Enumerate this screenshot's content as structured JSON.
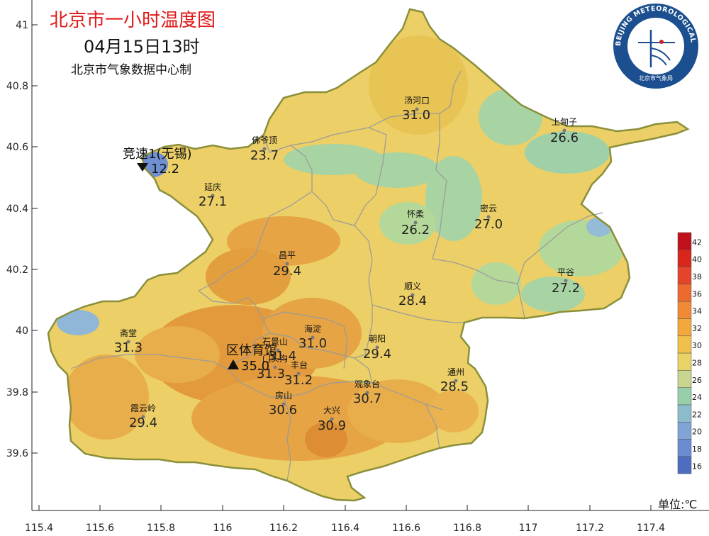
{
  "header": {
    "title": "北京市一小时温度图",
    "datetime": "04月15日13时",
    "credit": "北京市气象数据中心制"
  },
  "logo": {
    "ring_text": "BEIJING METEOROLOGICAL SERVICE",
    "bottom_text": "北京市气象局"
  },
  "axes": {
    "y_ticks": [
      "41",
      "40.8",
      "40.6",
      "40.4",
      "40.2",
      "40",
      "39.8",
      "39.6"
    ],
    "x_ticks": [
      "115.4",
      "115.6",
      "115.8",
      "116",
      "116.2",
      "116.4",
      "116.6",
      "116.8",
      "117",
      "117.2",
      "117.4"
    ]
  },
  "legend": {
    "unit_label": "单位:℃",
    "levels": [
      "42",
      "40",
      "38",
      "36",
      "34",
      "32",
      "30",
      "28",
      "26",
      "24",
      "22",
      "20",
      "18",
      "16"
    ],
    "colors": [
      "#c0101c",
      "#d8261c",
      "#e4442a",
      "#ec6a2e",
      "#f08a34",
      "#f2a83a",
      "#f0c04a",
      "#e8d466",
      "#c8d690",
      "#96cfaa",
      "#8cbccc",
      "#80a4d6",
      "#6a8cd2",
      "#4e6cc0"
    ]
  },
  "stations": [
    {
      "name": "汤河口",
      "temp": "31.0"
    },
    {
      "name": "上甸子",
      "temp": "26.6"
    },
    {
      "name": "佛爷顶",
      "temp": "23.7"
    },
    {
      "name": "延庆",
      "temp": "27.1"
    },
    {
      "name": "怀柔",
      "temp": "26.2"
    },
    {
      "name": "密云",
      "temp": "27.0"
    },
    {
      "name": "昌平",
      "temp": "29.4"
    },
    {
      "name": "平谷",
      "temp": "27.2"
    },
    {
      "name": "顺义",
      "temp": "28.4"
    },
    {
      "name": "斋堂",
      "temp": "31.3"
    },
    {
      "name": "海淀",
      "temp": "31.0"
    },
    {
      "name": "朝阳",
      "temp": "29.4"
    },
    {
      "name": "石景山",
      "temp": "31.4"
    },
    {
      "name": "门头沟",
      "temp": "31.3"
    },
    {
      "name": "丰台",
      "temp": "31.2"
    },
    {
      "name": "通州",
      "temp": "28.5"
    },
    {
      "name": "观象台",
      "temp": "30.7"
    },
    {
      "name": "房山",
      "temp": "30.6"
    },
    {
      "name": "霞云岭",
      "temp": "29.4"
    },
    {
      "name": "大兴",
      "temp": "30.9"
    }
  ],
  "extremes": {
    "min": {
      "label": "竞速1(无锡)",
      "temp": "12.2"
    },
    "max": {
      "label": "区体育馆",
      "temp": "35.0"
    }
  }
}
